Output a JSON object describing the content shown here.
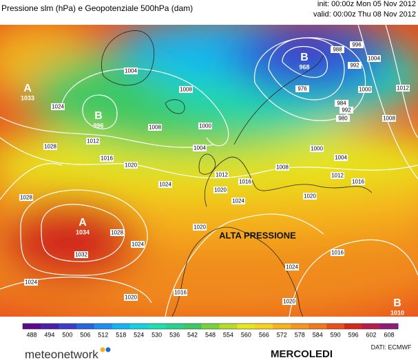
{
  "header": {
    "title": "Pressione slm (hPa) e Geopotenziale 500hPa (dam)",
    "init": "init: 00:00z Mon 05 Nov 2012",
    "valid": "valid: 00:00z Thu 08 Nov 2012"
  },
  "map": {
    "annotation": "ALTA PRESSIONE",
    "centers": [
      {
        "letter": "B",
        "value": 968
      },
      {
        "letter": "B",
        "value": 996
      },
      {
        "letter": "A",
        "value": 1034
      },
      {
        "letter": "B",
        "value": 1010
      },
      {
        "letter": "A",
        "value": 1033
      }
    ],
    "isobar_labels": [
      1004,
      1008,
      1008,
      1012,
      1016,
      1020,
      1024,
      1028,
      1024,
      1028,
      1032,
      1028,
      1024,
      1024,
      1020,
      1016,
      1020,
      1000,
      1004,
      1012,
      1020,
      1024,
      1016,
      1008,
      1004,
      1000,
      1012,
      1016,
      1020,
      1016,
      1024,
      1020,
      1008,
      1012,
      1004,
      996,
      992,
      988,
      984,
      980,
      976,
      1000,
      992
    ]
  },
  "colorbar": {
    "ticks": [
      488,
      494,
      500,
      506,
      512,
      518,
      524,
      530,
      536,
      542,
      548,
      554,
      560,
      566,
      572,
      578,
      584,
      590,
      596,
      602,
      608
    ],
    "colors": [
      "#5a0a8c",
      "#4b1fa6",
      "#3c3cc8",
      "#2864dc",
      "#1e8cf0",
      "#14b4f0",
      "#14d2dc",
      "#1edcb4",
      "#28d28c",
      "#3cc864",
      "#78d23c",
      "#b4dc28",
      "#e6e61e",
      "#f5d21e",
      "#f5b41e",
      "#f5961e",
      "#f0781e",
      "#e6501e",
      "#d2281e",
      "#b41e50",
      "#8c1e78"
    ]
  },
  "footer": {
    "brand": "meteonetwork",
    "day": "MERCOLEDI",
    "source": "DATI: ECMWF"
  }
}
